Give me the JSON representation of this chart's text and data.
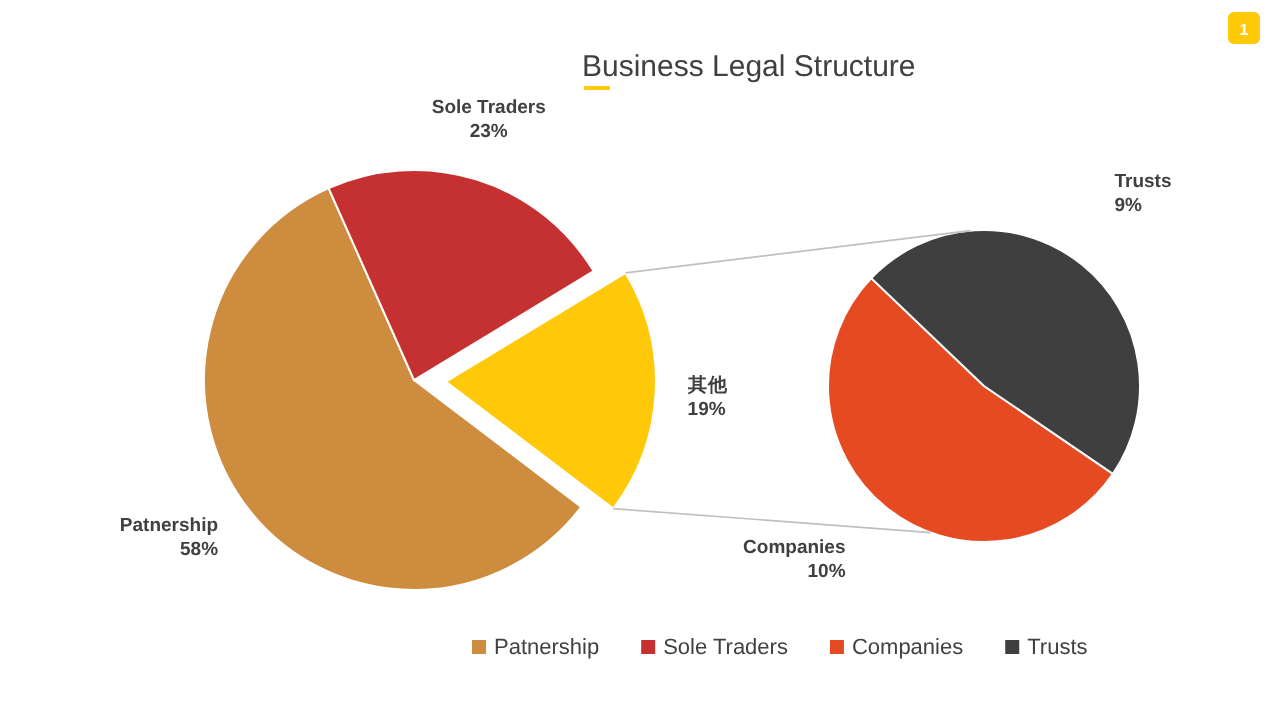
{
  "chart_data": [
    {
      "type": "pie",
      "title": "Business Legal Structure",
      "annotations": [
        "1"
      ],
      "categories": [
        "Patnership",
        "Sole Traders",
        "其他"
      ],
      "values": [
        58,
        23,
        19
      ],
      "value_labels": [
        "58%",
        "23%",
        "19%"
      ],
      "colors": [
        "#cd8c3e",
        "#c53030",
        "#ffc90a"
      ],
      "legend": "bottom"
    },
    {
      "type": "pie",
      "categories": [
        "Companies",
        "Trusts"
      ],
      "values": [
        10,
        9
      ],
      "value_labels": [
        "10%",
        "9%"
      ],
      "colors": [
        "#e64a22",
        "#3f3f3f"
      ],
      "legend": "bottom"
    }
  ]
}
